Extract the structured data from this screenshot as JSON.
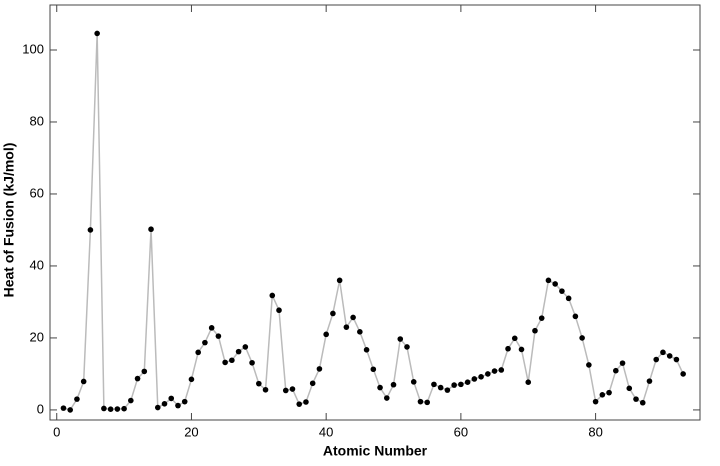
{
  "chart_data": {
    "type": "line",
    "x_label": "Atomic Number",
    "y_label": "Heat of Fusion (kJ/mol)",
    "x": [
      1,
      2,
      3,
      4,
      5,
      6,
      7,
      8,
      9,
      10,
      11,
      12,
      13,
      14,
      15,
      16,
      17,
      18,
      19,
      20,
      21,
      22,
      23,
      24,
      25,
      26,
      27,
      28,
      29,
      30,
      31,
      32,
      33,
      34,
      35,
      36,
      37,
      38,
      39,
      40,
      41,
      42,
      43,
      44,
      45,
      46,
      47,
      48,
      49,
      50,
      51,
      52,
      53,
      54,
      55,
      56,
      57,
      58,
      59,
      60,
      61,
      62,
      63,
      64,
      65,
      66,
      67,
      68,
      69,
      70,
      71,
      72,
      73,
      74,
      75,
      76,
      77,
      78,
      79,
      80,
      81,
      82,
      83,
      84,
      85,
      86,
      87,
      88,
      89,
      90,
      91,
      92,
      93
    ],
    "series": [
      {
        "color": "#bbbbbb",
        "marker_color": "#000000",
        "values": [
          0.5,
          0,
          3,
          7.9,
          50,
          104.6,
          0.4,
          0.2,
          0.25,
          0.34,
          2.6,
          8.7,
          10.7,
          50.2,
          0.66,
          1.7,
          3.2,
          1.2,
          2.3,
          8.5,
          16,
          18.7,
          22.8,
          20.5,
          13.2,
          13.8,
          16.2,
          17.5,
          13.1,
          7.3,
          5.6,
          31.8,
          27.7,
          5.4,
          5.8,
          1.6,
          2.2,
          7.4,
          11.4,
          21,
          26.8,
          36,
          23,
          25.7,
          21.7,
          16.7,
          11.3,
          6.2,
          3.3,
          7,
          19.7,
          17.5,
          7.8,
          2.3,
          2.1,
          7.1,
          6.2,
          5.5,
          6.9,
          7.1,
          7.7,
          8.6,
          9.2,
          10,
          10.8,
          11.1,
          17,
          19.9,
          16.8,
          7.7,
          22,
          25.5,
          36,
          35,
          33,
          31,
          26,
          20,
          12.5,
          2.3,
          4.2,
          4.8,
          10.9,
          13,
          6,
          3,
          2,
          8,
          14,
          16,
          15,
          14,
          10
        ]
      }
    ],
    "xlim": [
      -1,
      95.5
    ],
    "ylim": [
      -2.8,
      112.5
    ],
    "xticks": [
      0,
      20,
      40,
      60,
      80
    ],
    "yticks": [
      0,
      20,
      40,
      60,
      80,
      100
    ]
  }
}
